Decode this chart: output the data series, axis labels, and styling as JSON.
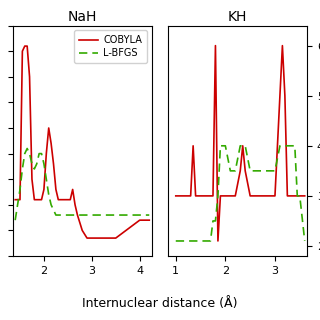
{
  "title_left": "NaH",
  "title_right": "KH",
  "xlabel": "Internuclear distance (Å)",
  "legend_cobyla": "COBYLA",
  "legend_lbfgs": "L-BFGS",
  "cobyla_color": "#cc0000",
  "lbfgs_color": "#33aa00",
  "nah_cobyla_x": [
    1.4,
    1.5,
    1.55,
    1.6,
    1.65,
    1.7,
    1.75,
    1.8,
    1.85,
    1.9,
    1.95,
    2.0,
    2.05,
    2.1,
    2.15,
    2.2,
    2.25,
    2.3,
    2.35,
    2.4,
    2.45,
    2.5,
    2.55,
    2.6,
    2.65,
    2.7,
    2.8,
    2.9,
    3.0,
    3.5,
    4.0,
    4.2
  ],
  "nah_cobyla_y": [
    3.6,
    3.6,
    6.5,
    6.6,
    6.6,
    6.0,
    4.0,
    3.6,
    3.6,
    3.6,
    3.6,
    3.8,
    4.5,
    5.0,
    4.7,
    4.3,
    3.8,
    3.6,
    3.6,
    3.6,
    3.6,
    3.6,
    3.6,
    3.8,
    3.5,
    3.3,
    3.0,
    2.85,
    2.85,
    2.85,
    3.2,
    3.2
  ],
  "nah_lbfgs_x": [
    1.4,
    1.5,
    1.55,
    1.6,
    1.65,
    1.7,
    1.75,
    1.8,
    1.85,
    1.9,
    1.95,
    2.0,
    2.05,
    2.1,
    2.15,
    2.2,
    2.25,
    2.3,
    2.35,
    2.4,
    2.5,
    2.6,
    2.7,
    2.8,
    2.9,
    3.0,
    4.2
  ],
  "nah_lbfgs_y": [
    3.2,
    3.8,
    4.2,
    4.5,
    4.6,
    4.5,
    4.3,
    4.2,
    4.3,
    4.5,
    4.5,
    4.3,
    4.0,
    3.7,
    3.5,
    3.4,
    3.3,
    3.3,
    3.3,
    3.3,
    3.3,
    3.3,
    3.3,
    3.3,
    3.3,
    3.3,
    3.3
  ],
  "kh_cobyla_x": [
    1.0,
    1.1,
    1.15,
    1.2,
    1.25,
    1.3,
    1.35,
    1.4,
    1.45,
    1.5,
    1.6,
    1.7,
    1.75,
    1.8,
    1.85,
    1.9,
    1.95,
    2.0,
    2.05,
    2.1,
    2.2,
    2.3,
    2.35,
    2.4,
    2.5,
    2.6,
    2.7,
    2.8,
    2.9,
    3.0,
    3.1,
    3.15,
    3.2,
    3.25,
    3.3,
    3.35,
    3.4,
    3.45,
    3.5,
    3.6
  ],
  "kh_cobyla_y": [
    3.0,
    3.0,
    3.0,
    3.0,
    3.0,
    3.0,
    4.0,
    3.0,
    3.0,
    3.0,
    3.0,
    3.0,
    3.0,
    6.0,
    2.1,
    3.0,
    3.0,
    3.0,
    3.0,
    3.0,
    3.0,
    3.5,
    4.0,
    3.5,
    3.0,
    3.0,
    3.0,
    3.0,
    3.0,
    3.0,
    5.0,
    6.0,
    5.0,
    3.0,
    3.0,
    3.0,
    3.0,
    3.0,
    3.0,
    3.0
  ],
  "kh_lbfgs_x": [
    1.0,
    1.1,
    1.2,
    1.3,
    1.4,
    1.5,
    1.6,
    1.7,
    1.75,
    1.8,
    1.85,
    1.9,
    1.95,
    2.0,
    2.1,
    2.2,
    2.3,
    2.4,
    2.5,
    2.6,
    2.7,
    2.8,
    2.9,
    3.0,
    3.1,
    3.2,
    3.3,
    3.35,
    3.4,
    3.45,
    3.5,
    3.6
  ],
  "kh_lbfgs_y": [
    2.1,
    2.1,
    2.1,
    2.1,
    2.1,
    2.1,
    2.1,
    2.1,
    2.5,
    2.5,
    3.0,
    4.0,
    4.0,
    4.0,
    3.5,
    3.5,
    4.0,
    4.0,
    3.5,
    3.5,
    3.5,
    3.5,
    3.5,
    3.5,
    4.0,
    4.0,
    4.0,
    4.0,
    4.0,
    3.0,
    3.0,
    2.1
  ],
  "nah_xlim": [
    1.35,
    4.25
  ],
  "nah_xticks": [
    2,
    3,
    4
  ],
  "nah_ylim": [
    2.5,
    7.0
  ],
  "kh_xlim": [
    0.85,
    3.65
  ],
  "kh_xticks": [
    1,
    2,
    3
  ],
  "kh_ylim": [
    1.8,
    6.4
  ],
  "kh_yticks": [
    2,
    3,
    4,
    5,
    6
  ]
}
